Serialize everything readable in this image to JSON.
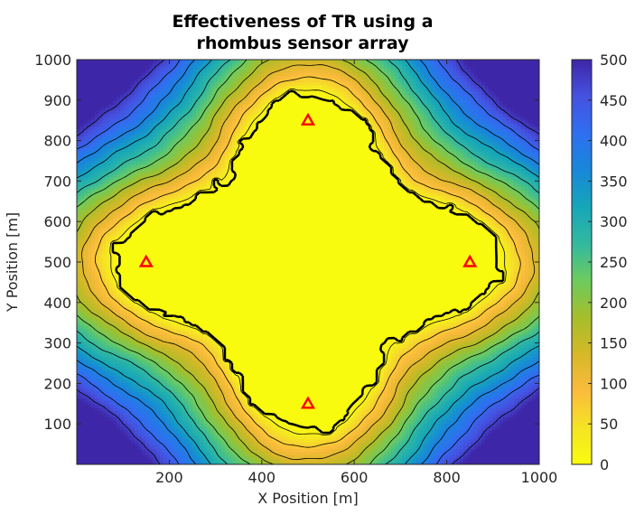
{
  "chart_data": {
    "type": "heatmap",
    "title": "Effectiveness of TR using a\nrhombus sensor array",
    "title_lines": [
      "Effectiveness of TR using a",
      "rhombus sensor array"
    ],
    "xlabel": "X Position [m]",
    "ylabel": "Y Position [m]",
    "xlim": [
      0,
      1000
    ],
    "ylim": [
      0,
      1000
    ],
    "x_ticks": [
      200,
      400,
      600,
      800,
      1000
    ],
    "y_ticks": [
      100,
      200,
      300,
      400,
      500,
      600,
      700,
      800,
      900,
      1000
    ],
    "colorbar": {
      "range": [
        0,
        500
      ],
      "ticks": [
        0,
        50,
        100,
        150,
        200,
        250,
        300,
        350,
        400,
        450,
        500
      ],
      "colormap": "parula",
      "stops": [
        "#f9fb0e",
        "#f5e424",
        "#fbbb3d",
        "#d6b828",
        "#a5be2b",
        "#6ccb5f",
        "#33b99f",
        "#16a6b9",
        "#1887d9",
        "#2f6ff0",
        "#4552e0",
        "#3e26a8"
      ]
    },
    "contour_levels": [
      25,
      75,
      125,
      175,
      225,
      275,
      325,
      375,
      425,
      475
    ],
    "sensors": {
      "marker": "triangle",
      "color": "#ff0000",
      "points": [
        [
          500,
          850
        ],
        [
          150,
          500
        ],
        [
          850,
          500
        ],
        [
          500,
          150
        ]
      ]
    },
    "grid": false
  }
}
